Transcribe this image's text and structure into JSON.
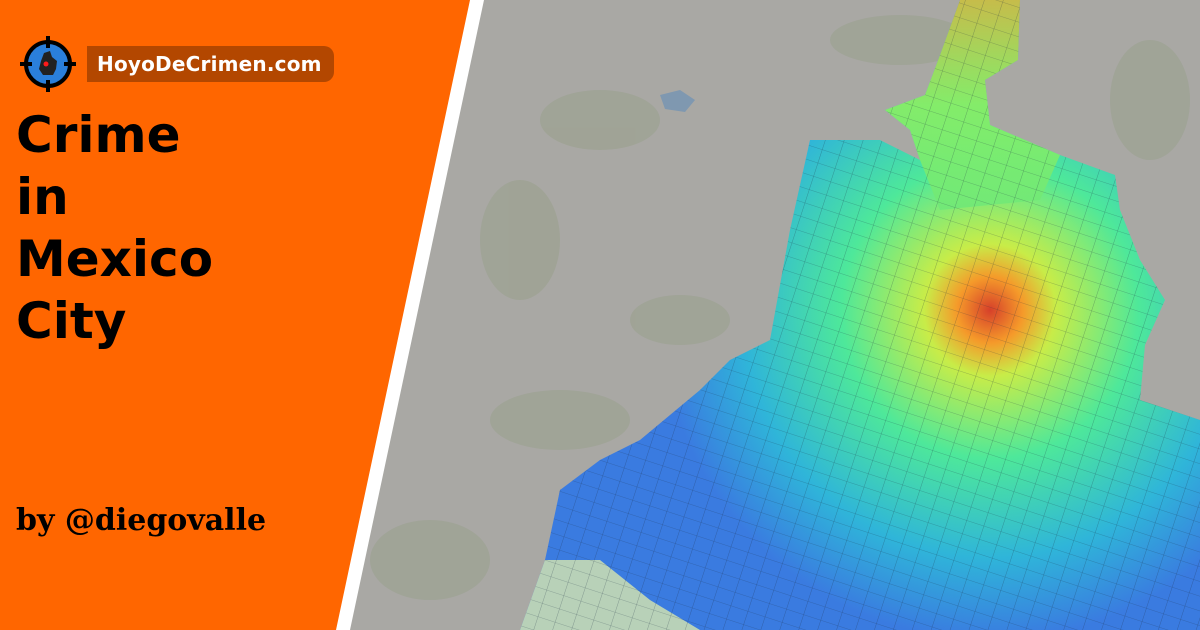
{
  "brand": {
    "name": "HoyoDeCrimen.com",
    "logo_icon": "crosshair-map-icon"
  },
  "title_lines": [
    "Crime",
    "in",
    "Mexico",
    "City"
  ],
  "byline": "by @diegovalle",
  "colors": {
    "panel": "#ff6600",
    "brand_badge": "#b34700",
    "map_base": "#a9a8a4",
    "stripe": "#ffffff"
  },
  "map": {
    "type": "choropleth",
    "color_scale": [
      "#3a7be0",
      "#2fb5d9",
      "#3fe0a8",
      "#8cf060",
      "#e8e83a",
      "#f59a2a",
      "#d6402a"
    ]
  }
}
